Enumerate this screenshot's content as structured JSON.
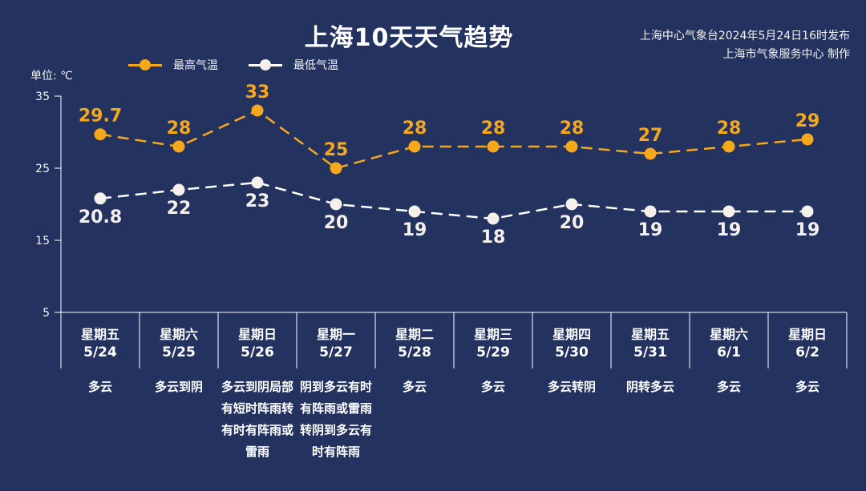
{
  "header": {
    "title": "上海10天天气趋势",
    "issuer_line1": "上海中心气象台2024年5月24日16时发布",
    "issuer_line2": "上海市气象服务中心 制作"
  },
  "unit_label": "单位: ℃",
  "legend": [
    {
      "label": "最高气温",
      "color": "#f5a81c"
    },
    {
      "label": "最低气温",
      "color": "#f5f0ea"
    }
  ],
  "colors": {
    "background": "#23325f",
    "high": "#f5a81c",
    "low": "#f5f0ea",
    "axis": "#ffffff"
  },
  "days": [
    {
      "weekday": "星期五",
      "date": "5/24",
      "weather": "多云"
    },
    {
      "weekday": "星期六",
      "date": "5/25",
      "weather": "多云到阴"
    },
    {
      "weekday": "星期日",
      "date": "5/26",
      "weather": "多云到阴局部有短时阵雨转有时有阵雨或雷雨"
    },
    {
      "weekday": "星期一",
      "date": "5/27",
      "weather": "阴到多云有时有阵雨或雷雨转阴到多云有时有阵雨"
    },
    {
      "weekday": "星期二",
      "date": "5/28",
      "weather": "多云"
    },
    {
      "weekday": "星期三",
      "date": "5/29",
      "weather": "多云"
    },
    {
      "weekday": "星期四",
      "date": "5/30",
      "weather": "多云转阴"
    },
    {
      "weekday": "星期五",
      "date": "5/31",
      "weather": "阴转多云"
    },
    {
      "weekday": "星期六",
      "date": "6/1",
      "weather": "多云"
    },
    {
      "weekday": "星期日",
      "date": "6/2",
      "weather": "多云"
    }
  ],
  "chart_data": {
    "type": "line",
    "title": "上海10天天气趋势",
    "ylabel": "单位: ℃",
    "xlabel": "",
    "categories": [
      "5/24",
      "5/25",
      "5/26",
      "5/27",
      "5/28",
      "5/29",
      "5/30",
      "5/31",
      "6/1",
      "6/2"
    ],
    "series": [
      {
        "name": "最高气温",
        "values": [
          29.7,
          28,
          33,
          25,
          28,
          28,
          28,
          27,
          28,
          29
        ],
        "labels": [
          "29.7",
          "28",
          "33",
          "25",
          "28",
          "28",
          "28",
          "27",
          "28",
          "29"
        ],
        "style": "dashed",
        "color": "#f5a81c"
      },
      {
        "name": "最低气温",
        "values": [
          20.8,
          22,
          23,
          20,
          19,
          18,
          20,
          19,
          19,
          19
        ],
        "labels": [
          "20.8",
          "22",
          "23",
          "20",
          "19",
          "18",
          "20",
          "19",
          "19",
          "19"
        ],
        "style": "dashed",
        "color": "#f5f0ea"
      }
    ],
    "yticks": [
      5,
      15,
      25,
      35
    ],
    "ylim": [
      5,
      35
    ],
    "grid": false,
    "legend_position": "top"
  }
}
